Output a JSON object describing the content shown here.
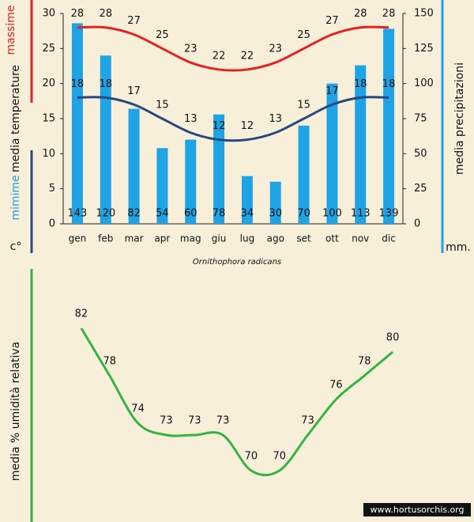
{
  "chart_data": [
    {
      "type": "combo",
      "categories": [
        "gen",
        "feb",
        "mar",
        "apr",
        "mag",
        "giu",
        "lug",
        "ago",
        "set",
        "ott",
        "nov",
        "dic"
      ],
      "y_labels": {
        "max": "massime",
        "main": "media  temperature",
        "min": "mimime",
        "unit": "c°"
      },
      "y2_label": "media  precipitazioni",
      "y2_unit": "mm.",
      "ylim": [
        0,
        30
      ],
      "yticks": [
        0,
        5,
        10,
        15,
        20,
        25,
        30
      ],
      "y2lim": [
        0,
        150
      ],
      "y2ticks": [
        0,
        25,
        50,
        75,
        100,
        125,
        150
      ],
      "series": [
        {
          "name": "precipitazioni",
          "type": "bar",
          "axis": "y2",
          "color": "#1fa3e4",
          "values": [
            143,
            120,
            82,
            54,
            60,
            78,
            34,
            30,
            70,
            100,
            113,
            139
          ]
        },
        {
          "name": "massime",
          "type": "line",
          "color": "#e32222",
          "values": [
            28,
            28,
            27,
            25,
            23,
            22,
            22,
            23,
            25,
            27,
            28,
            28
          ]
        },
        {
          "name": "mimime",
          "type": "line",
          "color": "#26497e",
          "values": [
            18,
            18,
            17,
            15,
            13,
            12,
            12,
            13,
            15,
            17,
            18,
            18
          ]
        }
      ],
      "subtitle": "Ornithophora radicans"
    },
    {
      "type": "line",
      "y_label": "media % umidità relativa",
      "ylim": [
        66,
        87
      ],
      "color": "#33b340",
      "values": [
        82,
        78,
        74,
        73,
        73,
        73,
        70,
        70,
        73,
        76,
        78,
        80
      ],
      "watermark": "www.hortusorchis.org"
    }
  ]
}
